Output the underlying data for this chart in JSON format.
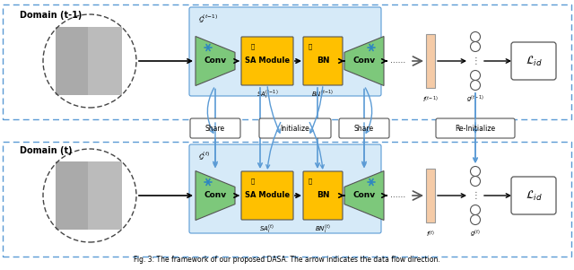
{
  "bg_color": "#ffffff",
  "top_domain_label": "Domain (t-1)",
  "bot_domain_label": "Domain (t)",
  "green_color": "#7DC87B",
  "orange_color": "#FFC000",
  "peach_color": "#F5CBA7",
  "blue_fill": "#D6EAF8",
  "blue_edge": "#5B9BD5",
  "sa_top_sub": "SA",
  "bn_top_sub": "BN",
  "sa_bot_sub": "SA",
  "bn_bot_sub": "BN",
  "caption": "Fig. 3: The framework of our proposed DASA. The arrow indicates the data flow direction."
}
